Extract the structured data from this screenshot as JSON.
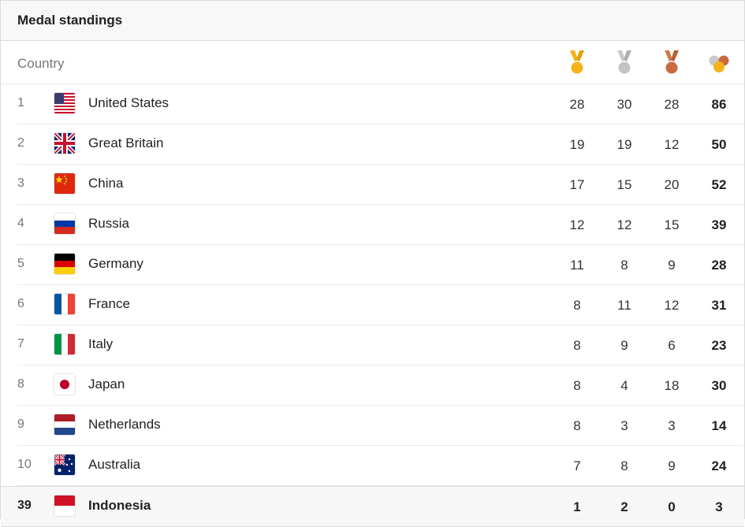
{
  "card": {
    "title": "Medal standings"
  },
  "columns": {
    "country": "Country",
    "gold_icon": "gold-medal-icon",
    "silver_icon": "silver-medal-icon",
    "bronze_icon": "bronze-medal-icon",
    "total_icon": "total-medals-icon"
  },
  "colors": {
    "gold": "#f5b318",
    "silver": "#c4c4c4",
    "bronze": "#c96a3f"
  },
  "rows": [
    {
      "rank": "1",
      "country": "United States",
      "flag": "us-flag-icon",
      "gold": "28",
      "silver": "30",
      "bronze": "28",
      "total": "86"
    },
    {
      "rank": "2",
      "country": "Great Britain",
      "flag": "gb-flag-icon",
      "gold": "19",
      "silver": "19",
      "bronze": "12",
      "total": "50"
    },
    {
      "rank": "3",
      "country": "China",
      "flag": "cn-flag-icon",
      "gold": "17",
      "silver": "15",
      "bronze": "20",
      "total": "52"
    },
    {
      "rank": "4",
      "country": "Russia",
      "flag": "ru-flag-icon",
      "gold": "12",
      "silver": "12",
      "bronze": "15",
      "total": "39"
    },
    {
      "rank": "5",
      "country": "Germany",
      "flag": "de-flag-icon",
      "gold": "11",
      "silver": "8",
      "bronze": "9",
      "total": "28"
    },
    {
      "rank": "6",
      "country": "France",
      "flag": "fr-flag-icon",
      "gold": "8",
      "silver": "11",
      "bronze": "12",
      "total": "31"
    },
    {
      "rank": "7",
      "country": "Italy",
      "flag": "it-flag-icon",
      "gold": "8",
      "silver": "9",
      "bronze": "6",
      "total": "23"
    },
    {
      "rank": "8",
      "country": "Japan",
      "flag": "jp-flag-icon",
      "gold": "8",
      "silver": "4",
      "bronze": "18",
      "total": "30"
    },
    {
      "rank": "9",
      "country": "Netherlands",
      "flag": "nl-flag-icon",
      "gold": "8",
      "silver": "3",
      "bronze": "3",
      "total": "14"
    },
    {
      "rank": "10",
      "country": "Australia",
      "flag": "au-flag-icon",
      "gold": "7",
      "silver": "8",
      "bronze": "9",
      "total": "24"
    },
    {
      "rank": "39",
      "country": "Indonesia",
      "flag": "id-flag-icon",
      "gold": "1",
      "silver": "2",
      "bronze": "0",
      "total": "3"
    }
  ]
}
